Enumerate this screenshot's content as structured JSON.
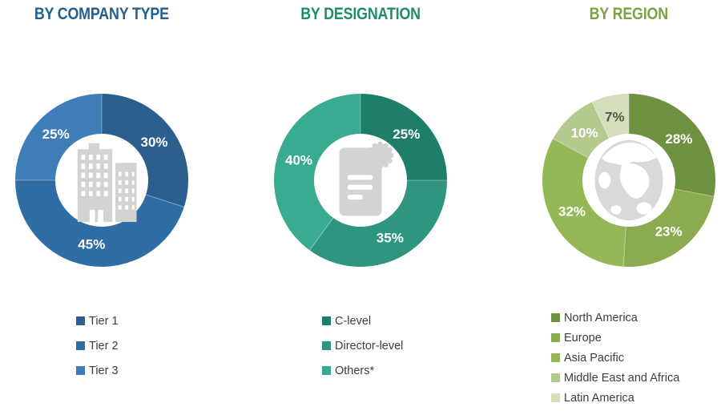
{
  "chart_data": [
    {
      "type": "pie",
      "donut": true,
      "title": "BY COMPANY TYPE",
      "title_color": "#235e8e",
      "center_icon": "building-icon",
      "start_angle_deg": 0,
      "direction": "clockwise",
      "legend_position": "bottom-left",
      "slices": [
        {
          "label": "Tier 1",
          "value": 30,
          "display": "30%",
          "color": "#2b5f8e",
          "value_label_color": "#ffffff"
        },
        {
          "label": "Tier 2",
          "value": 45,
          "display": "45%",
          "color": "#2f6da4",
          "value_label_color": "#ffffff"
        },
        {
          "label": "Tier 3",
          "value": 25,
          "display": "25%",
          "color": "#3f7db8",
          "value_label_color": "#ffffff"
        }
      ]
    },
    {
      "type": "pie",
      "donut": true,
      "title": "BY DESIGNATION",
      "title_color": "#218a72",
      "center_icon": "certificate-icon",
      "start_angle_deg": 0,
      "direction": "clockwise",
      "legend_position": "bottom-left",
      "slices": [
        {
          "label": "C-level",
          "value": 25,
          "display": "25%",
          "color": "#1e7e67",
          "value_label_color": "#ffffff"
        },
        {
          "label": "Director-level",
          "value": 35,
          "display": "35%",
          "color": "#2e957e",
          "value_label_color": "#ffffff"
        },
        {
          "label": "Others*",
          "value": 40,
          "display": "40%",
          "color": "#38ab91",
          "value_label_color": "#ffffff"
        }
      ]
    },
    {
      "type": "pie",
      "donut": true,
      "title": "BY REGION",
      "title_color": "#7ca143",
      "center_icon": "globe-icon",
      "start_angle_deg": 0,
      "direction": "clockwise",
      "legend_position": "bottom-left",
      "slices": [
        {
          "label": "North America",
          "value": 28,
          "display": "28%",
          "color": "#6f9142",
          "value_label_color": "#ffffff"
        },
        {
          "label": "Europe",
          "value": 23,
          "display": "23%",
          "color": "#8cab50",
          "value_label_color": "#ffffff"
        },
        {
          "label": "Asia Pacific",
          "value": 32,
          "display": "32%",
          "color": "#94b857",
          "value_label_color": "#ffffff"
        },
        {
          "label": "Middle East and Africa",
          "value": 10,
          "display": "10%",
          "color": "#b4c98d",
          "value_label_color": "#ffffff"
        },
        {
          "label": "Latin America",
          "value": 7,
          "display": "7%",
          "color": "#d3dfbc",
          "value_label_color": "#4f5741"
        }
      ]
    }
  ]
}
